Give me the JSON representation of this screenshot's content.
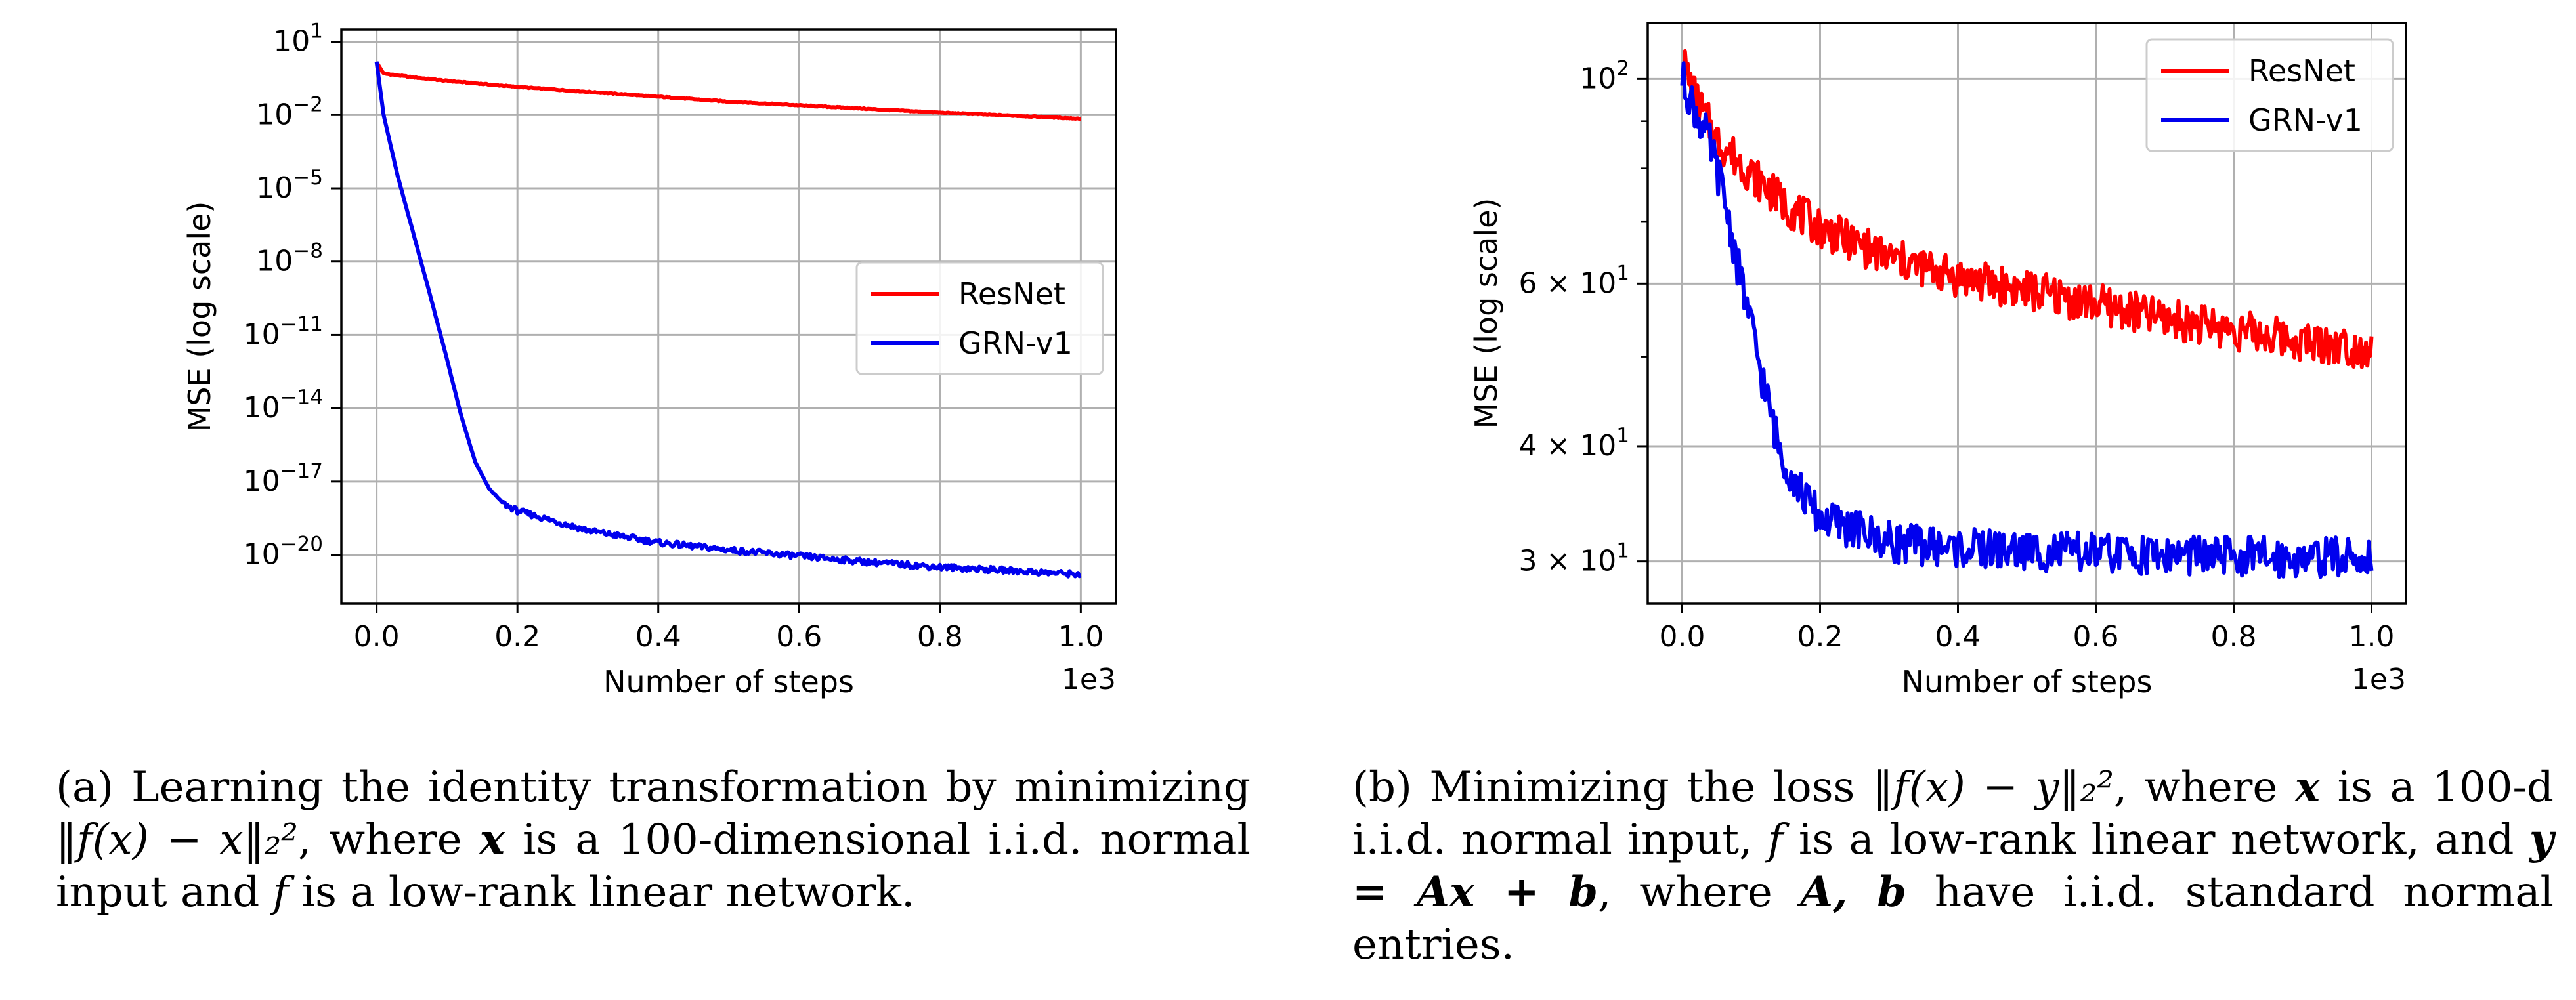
{
  "chart_data": [
    {
      "type": "line",
      "xlabel": "Number of steps",
      "ylabel": "MSE (log scale)",
      "x_offset_label": "1e3",
      "xscale": "linear",
      "yscale": "log",
      "xlim": [
        -0.05,
        1.05
      ],
      "ylim_log10": [
        -22,
        1.5
      ],
      "xticks": [
        0.0,
        0.2,
        0.4,
        0.6,
        0.8,
        1.0
      ],
      "xtick_labels": [
        "0.0",
        "0.2",
        "0.4",
        "0.6",
        "0.8",
        "1.0"
      ],
      "yticks_log10": [
        1,
        -2,
        -5,
        -8,
        -11,
        -14,
        -17,
        -20
      ],
      "ytick_bases": [
        "10",
        "10",
        "10",
        "10",
        "10",
        "10",
        "10",
        "10"
      ],
      "ytick_exps": [
        "1",
        "−2",
        "−5",
        "−8",
        "−11",
        "−14",
        "−17",
        "−20"
      ],
      "grid": true,
      "legend_position": "center-right",
      "series": [
        {
          "name": "ResNet",
          "color": "#ff0000",
          "x": [
            0.0,
            0.01,
            0.05,
            0.1,
            0.2,
            0.3,
            0.4,
            0.5,
            0.6,
            0.7,
            0.8,
            0.9,
            1.0
          ],
          "log10_y": [
            0.15,
            -0.3,
            -0.45,
            -0.6,
            -0.85,
            -1.05,
            -1.25,
            -1.45,
            -1.6,
            -1.75,
            -1.9,
            -2.02,
            -2.15
          ]
        },
        {
          "name": "GRN-v1",
          "color": "#0000ee",
          "x": [
            0.0,
            0.01,
            0.03,
            0.05,
            0.08,
            0.1,
            0.12,
            0.14,
            0.16,
            0.18,
            0.2,
            0.3,
            0.4,
            0.5,
            0.6,
            0.7,
            0.8,
            0.9,
            1.0
          ],
          "log10_y": [
            0.2,
            -2.0,
            -4.5,
            -6.6,
            -9.8,
            -12.0,
            -14.3,
            -16.2,
            -17.3,
            -17.9,
            -18.2,
            -19.0,
            -19.5,
            -19.8,
            -20.05,
            -20.3,
            -20.5,
            -20.65,
            -20.8
          ]
        }
      ]
    },
    {
      "type": "line",
      "xlabel": "Number of steps",
      "ylabel": "MSE (log scale)",
      "x_offset_label": "1e3",
      "xscale": "linear",
      "yscale": "log",
      "xlim": [
        -0.05,
        1.05
      ],
      "ylim": [
        27,
        115
      ],
      "xticks": [
        0.0,
        0.2,
        0.4,
        0.6,
        0.8,
        1.0
      ],
      "xtick_labels": [
        "0.0",
        "0.2",
        "0.4",
        "0.6",
        "0.8",
        "1.0"
      ],
      "yticks": [
        100,
        60,
        40,
        30
      ],
      "ytick_bases": [
        "10",
        "6 × 10",
        "4 × 10",
        "3 × 10"
      ],
      "ytick_exps": [
        "2",
        "1",
        "1",
        "1"
      ],
      "grid": true,
      "legend_position": "upper right",
      "series": [
        {
          "name": "ResNet",
          "color": "#ff0000",
          "x": [
            0.0,
            0.02,
            0.05,
            0.1,
            0.15,
            0.2,
            0.3,
            0.4,
            0.5,
            0.6,
            0.7,
            0.8,
            0.9,
            1.0
          ],
          "y": [
            105,
            95,
            86,
            79,
            73,
            69,
            64,
            61,
            59,
            57,
            55,
            53.5,
            52,
            51
          ]
        },
        {
          "name": "GRN-v1",
          "color": "#0000ee",
          "x": [
            0.0,
            0.02,
            0.04,
            0.06,
            0.08,
            0.1,
            0.12,
            0.14,
            0.16,
            0.18,
            0.2,
            0.25,
            0.3,
            0.4,
            0.5,
            0.6,
            0.7,
            0.8,
            0.9,
            1.0
          ],
          "y": [
            100,
            92,
            85,
            75,
            63,
            54,
            46,
            40,
            37,
            35,
            33.5,
            32.5,
            31.5,
            31,
            30.8,
            30.6,
            30.5,
            30.4,
            30.3,
            30.3
          ]
        }
      ]
    }
  ],
  "captions": {
    "a": {
      "label": "(a)",
      "text1": "Learning the identity transformation by minimizing",
      "math1": "‖f(x) − x‖₂²",
      "text2": ", where",
      "var_x": "x",
      "text3": "is a 100-dimensional i.i.d. normal input and",
      "var_f": "f",
      "text4": "is a low-rank linear network."
    },
    "b": {
      "label": "(b)",
      "text1": "Minimizing the loss",
      "math1": "‖f(x) − y‖₂²",
      "text2": ", where",
      "var_x": "x",
      "text3": "is a 100-d i.i.d. normal input,",
      "var_f": "f",
      "text4": "is a low-rank linear network, and",
      "math2": "y = Ax + b",
      "text5": ", where",
      "math3": "A, b",
      "text6": "have i.i.d. standard normal entries."
    }
  }
}
